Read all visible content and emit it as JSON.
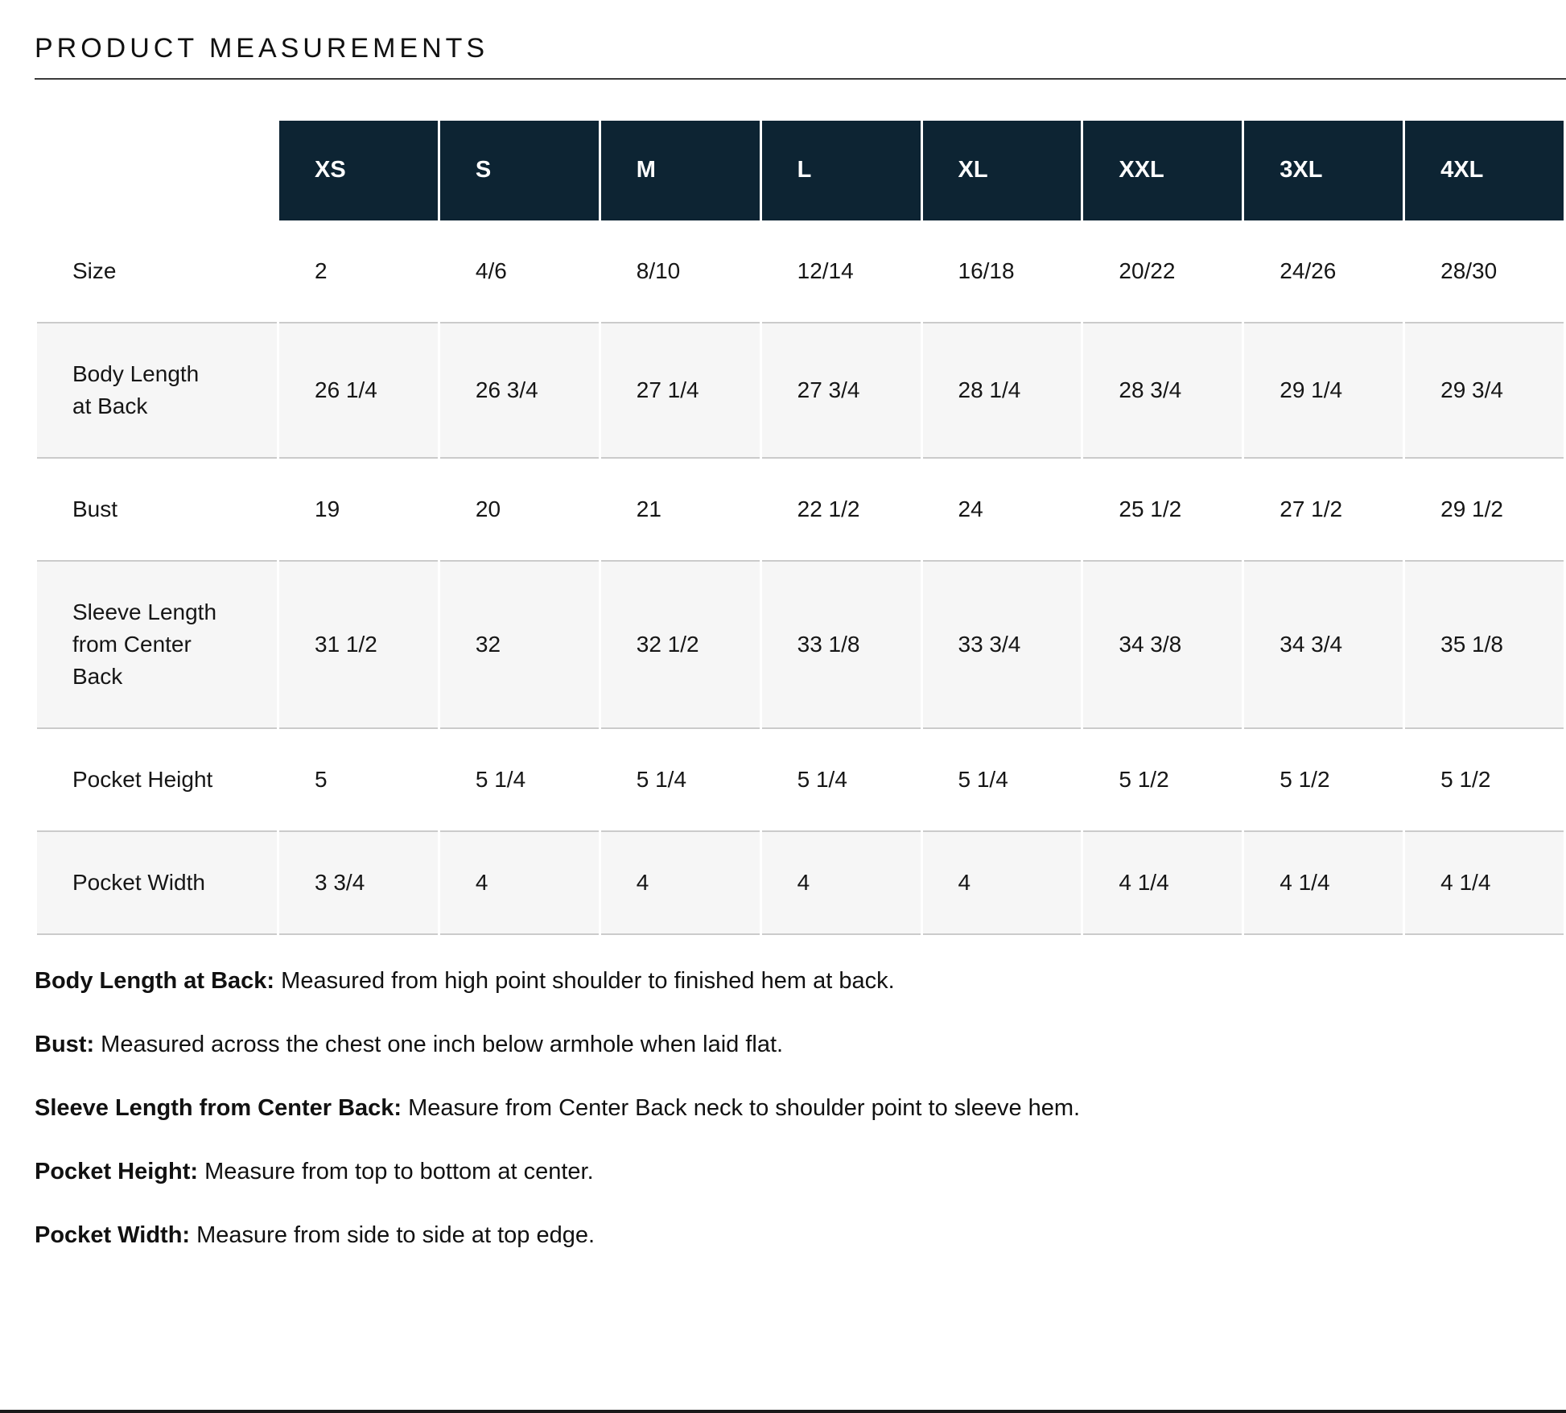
{
  "page": {
    "title": "PRODUCT MEASUREMENTS"
  },
  "table": {
    "columns": [
      "XS",
      "S",
      "M",
      "L",
      "XL",
      "XXL",
      "3XL",
      "4XL"
    ],
    "rows": [
      {
        "label": "Size",
        "values": [
          "2",
          "4/6",
          "8/10",
          "12/14",
          "16/18",
          "20/22",
          "24/26",
          "28/30"
        ]
      },
      {
        "label": "Body Length at Back",
        "values": [
          "26 1/4",
          "26 3/4",
          "27 1/4",
          "27 3/4",
          "28 1/4",
          "28 3/4",
          "29 1/4",
          "29 3/4"
        ]
      },
      {
        "label": "Bust",
        "values": [
          "19",
          "20",
          "21",
          "22 1/2",
          "24",
          "25 1/2",
          "27 1/2",
          "29 1/2"
        ]
      },
      {
        "label": "Sleeve Length from Center Back",
        "values": [
          "31 1/2",
          "32",
          "32 1/2",
          "33 1/8",
          "33 3/4",
          "34 3/8",
          "34 3/4",
          "35 1/8"
        ]
      },
      {
        "label": "Pocket Height",
        "values": [
          "5",
          "5 1/4",
          "5 1/4",
          "5 1/4",
          "5 1/4",
          "5 1/2",
          "5 1/2",
          "5 1/2"
        ]
      },
      {
        "label": "Pocket Width",
        "values": [
          "3 3/4",
          "4",
          "4",
          "4",
          "4",
          "4 1/4",
          "4 1/4",
          "4 1/4"
        ]
      }
    ]
  },
  "definitions": [
    {
      "term": "Body Length at Back:",
      "description": "Measured from high point shoulder to finished hem at back."
    },
    {
      "term": "Bust:",
      "description": "Measured across the chest one inch below armhole when laid flat."
    },
    {
      "term": "Sleeve Length from Center Back:",
      "description": "Measure from Center Back neck to shoulder point to sleeve hem."
    },
    {
      "term": "Pocket Height:",
      "description": "Measure from top to bottom at center."
    },
    {
      "term": "Pocket Width:",
      "description": "Measure from side to side at top edge."
    }
  ],
  "colors": {
    "header_bg": "#0d2433",
    "header_text": "#ffffff",
    "alt_row_bg": "#f6f6f6",
    "divider": "#cbcbcb",
    "title_rule": "#3a3a3a",
    "bottom_rule": "#1a1a1a"
  }
}
